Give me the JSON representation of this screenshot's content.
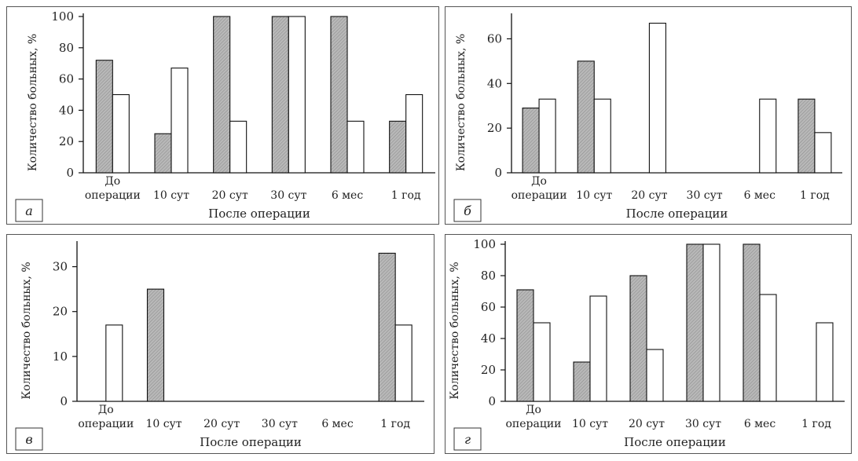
{
  "chart_data": [
    {
      "id": "a",
      "type": "bar",
      "panel_letter": "а",
      "ylabel": "Количество больных, %",
      "xlabel": "После операции",
      "ylim": [
        0,
        100
      ],
      "yticks": [
        "0",
        "20",
        "40",
        "60",
        "80",
        "100"
      ],
      "categories": [
        {
          "line1": "До",
          "line2": "операции"
        },
        {
          "line1": "",
          "line2": "10 сут"
        },
        {
          "line1": "",
          "line2": "20 сут"
        },
        {
          "line1": "",
          "line2": "30 сут"
        },
        {
          "line1": "",
          "line2": "6 мес"
        },
        {
          "line1": "",
          "line2": "1 год"
        }
      ],
      "series": [
        {
          "style": "shaded",
          "values": [
            72,
            25,
            100,
            100,
            100,
            33
          ]
        },
        {
          "style": "white",
          "values": [
            50,
            67,
            33,
            100,
            33,
            50
          ]
        }
      ]
    },
    {
      "id": "b",
      "type": "bar",
      "panel_letter": "б",
      "ylabel": "Количество больных, %",
      "xlabel": "После операции",
      "ylim": [
        0,
        70
      ],
      "yticks": [
        "0",
        "20",
        "40",
        "60"
      ],
      "categories": [
        {
          "line1": "До",
          "line2": "операции"
        },
        {
          "line1": "",
          "line2": "10 сут"
        },
        {
          "line1": "",
          "line2": "20 сут"
        },
        {
          "line1": "",
          "line2": "30 сут"
        },
        {
          "line1": "",
          "line2": "6 мес"
        },
        {
          "line1": "",
          "line2": "1 год"
        }
      ],
      "series": [
        {
          "style": "shaded",
          "values": [
            29,
            50,
            0,
            0,
            0,
            33
          ]
        },
        {
          "style": "white",
          "values": [
            33,
            33,
            67,
            0,
            33,
            18
          ]
        }
      ]
    },
    {
      "id": "c",
      "type": "bar",
      "panel_letter": "в",
      "ylabel": "Количество больных, %",
      "xlabel": "После операции",
      "ylim": [
        0,
        35
      ],
      "yticks": [
        "0",
        "10",
        "20",
        "30"
      ],
      "categories": [
        {
          "line1": "До",
          "line2": "операции"
        },
        {
          "line1": "",
          "line2": "10 сут"
        },
        {
          "line1": "",
          "line2": "20 сут"
        },
        {
          "line1": "",
          "line2": "30 сут"
        },
        {
          "line1": "",
          "line2": "6 мес"
        },
        {
          "line1": "",
          "line2": "1 год"
        }
      ],
      "series": [
        {
          "style": "shaded",
          "values": [
            0,
            25,
            0,
            0,
            0,
            33
          ]
        },
        {
          "style": "white",
          "values": [
            17,
            0,
            0,
            0,
            0,
            17
          ]
        }
      ]
    },
    {
      "id": "d",
      "type": "bar",
      "panel_letter": "г",
      "ylabel": "Количество больных, %",
      "xlabel": "После операции",
      "ylim": [
        0,
        100
      ],
      "yticks": [
        "0",
        "20",
        "40",
        "60",
        "80",
        "100"
      ],
      "categories": [
        {
          "line1": "До",
          "line2": "операции"
        },
        {
          "line1": "",
          "line2": "10 сут"
        },
        {
          "line1": "",
          "line2": "20 сут"
        },
        {
          "line1": "",
          "line2": "30 сут"
        },
        {
          "line1": "",
          "line2": "6 мес"
        },
        {
          "line1": "",
          "line2": "1 год"
        }
      ],
      "series": [
        {
          "style": "shaded",
          "values": [
            71,
            25,
            80,
            100,
            100,
            0
          ]
        },
        {
          "style": "white",
          "values": [
            50,
            67,
            33,
            100,
            68,
            50
          ]
        }
      ]
    }
  ],
  "colors": {
    "shaded": "#b8b8b8",
    "white": "#ffffff",
    "stroke": "#111111"
  }
}
